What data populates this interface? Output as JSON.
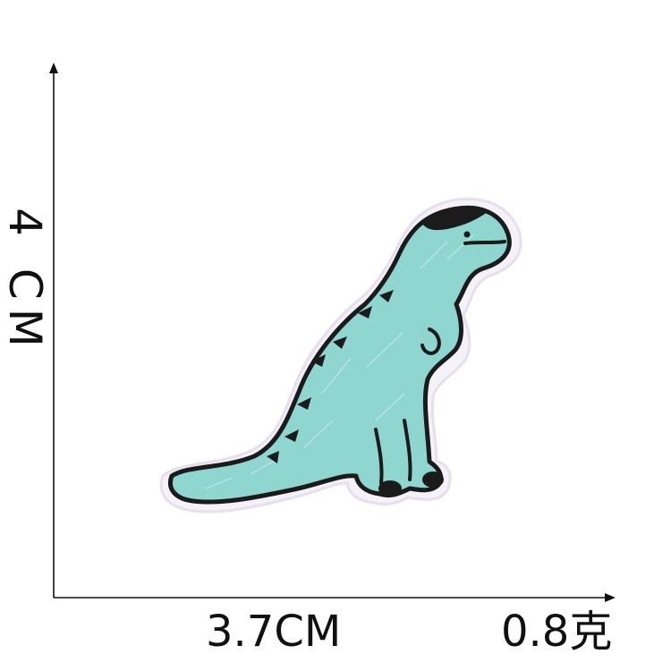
{
  "dimensions": {
    "height_label": "4 CM",
    "width_label": "3.7CM",
    "weight_label": "0.8克"
  },
  "colors": {
    "background": "#ffffff",
    "ink": "#111111",
    "patch_fill": "#8fd6d0",
    "patch_outline": "#1b1b1b",
    "patch_border": "#e6e0ee"
  },
  "subject": {
    "icon": "t-rex-embroidered-patch-icon"
  }
}
